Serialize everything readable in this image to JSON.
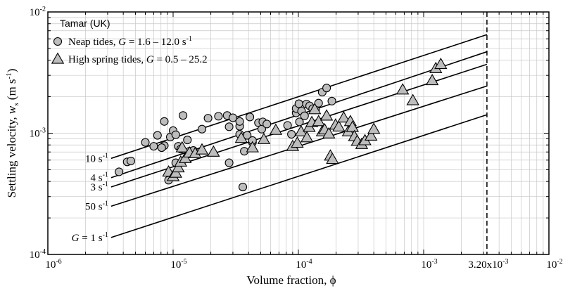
{
  "chart_data": {
    "type": "scatter",
    "x_scale": "log",
    "y_scale": "log",
    "xlim": [
      1e-06,
      0.01
    ],
    "ylim": [
      0.0001,
      0.01
    ],
    "grid": true,
    "legend_position": "top-left",
    "xlabel": "Volume fraction, ϕ",
    "ylabel_parts": [
      "Settling velocity, ",
      "w",
      "s",
      " (m s",
      "-1",
      ")"
    ],
    "x_ticks": [
      {
        "value": 1e-06,
        "base": "10",
        "exp": "-6"
      },
      {
        "value": 1e-05,
        "base": "10",
        "exp": "-5"
      },
      {
        "value": 0.0001,
        "base": "10",
        "exp": "-4"
      },
      {
        "value": 0.001,
        "base": "10",
        "exp": "-3"
      },
      {
        "value": 0.01,
        "base": "10",
        "exp": "-2"
      }
    ],
    "y_ticks": [
      {
        "value": 0.0001,
        "base": "10",
        "exp": "-4"
      },
      {
        "value": 0.001,
        "base": "10",
        "exp": "-3"
      },
      {
        "value": 0.01,
        "base": "10",
        "exp": "-2"
      }
    ],
    "vline": {
      "x": 0.0032,
      "label": "3.20x10",
      "label_exp": "-3"
    },
    "legend": {
      "title": "Tamar (UK)",
      "entries": [
        {
          "marker": "circle",
          "text": "Neap tides, ",
          "var": "G",
          "rest": " = 1.6 – 12.0 s",
          "sup": "-1"
        },
        {
          "marker": "triangle",
          "text": "High spring tides, ",
          "var": "G",
          "rest": " = 0.5 – 25.2",
          "sup": ""
        }
      ]
    },
    "curves": [
      {
        "label_prefix": "",
        "label": "10 s",
        "sup": "-1",
        "x_start": 3.2e-06,
        "y_start": 0.00062,
        "x_end": 0.0032,
        "y_end": 0.0065
      },
      {
        "label_prefix": "",
        "label": "4 s",
        "sup": "-1",
        "x_start": 3.2e-06,
        "y_start": 0.00043,
        "x_end": 0.0032,
        "y_end": 0.0047
      },
      {
        "label_prefix": "",
        "label": "3 s",
        "sup": "-1",
        "x_start": 3.2e-06,
        "y_start": 0.00036,
        "x_end": 0.0032,
        "y_end": 0.0037
      },
      {
        "label_prefix": "",
        "label": "50 s",
        "sup": "-1",
        "x_start": 3.2e-06,
        "y_start": 0.00025,
        "x_end": 0.0032,
        "y_end": 0.00245
      },
      {
        "label_prefix": "G",
        "label": " = 1 s",
        "sup": "-1",
        "x_start": 3.2e-06,
        "y_start": 0.000138,
        "x_end": 0.0032,
        "y_end": 0.00142
      }
    ],
    "series": [
      {
        "name": "Neap tides",
        "marker": "circle",
        "x": [
          3.7e-06,
          4.3e-06,
          4.6e-06,
          6e-06,
          7e-06,
          7.5e-06,
          8.5e-06,
          8.5e-06,
          9.5e-06,
          1e-05,
          1.05e-05,
          1.1e-05,
          1.15e-05,
          1.2e-05,
          1.3e-05,
          1.35e-05,
          1.45e-05,
          1.7e-05,
          1.9e-05,
          2.3e-05,
          2.7e-05,
          2.8e-05,
          3e-05,
          3.4e-05,
          3.4e-05,
          3.6e-05,
          3.7e-05,
          3.9e-05,
          4.1e-05,
          4.3e-05,
          4.3e-05,
          4.8e-05,
          5.1e-05,
          5.2e-05,
          5.6e-05,
          8.2e-05,
          8.8e-05,
          9.6e-05,
          9.6e-05,
          0.000101,
          0.000102,
          0.000106,
          0.000112,
          0.000116,
          0.000123,
          0.00013,
          0.000137,
          0.000145,
          0.000155,
          0.000168,
          0.000185,
          8.1e-06,
          9.2e-06,
          1.05e-05,
          2.8e-05,
          3.4e-05
        ],
        "y": [
          0.00048,
          0.00058,
          0.00059,
          0.00084,
          0.00078,
          0.00096,
          0.00079,
          0.00125,
          0.00093,
          0.00105,
          0.00097,
          0.00078,
          0.00074,
          0.0014,
          0.00088,
          0.00071,
          0.00072,
          0.00108,
          0.00133,
          0.00138,
          0.0014,
          0.00113,
          0.00134,
          0.00114,
          0.00125,
          0.00036,
          0.00071,
          0.00096,
          0.00136,
          0.00084,
          0.00087,
          0.00122,
          0.00108,
          0.00124,
          0.00119,
          0.00116,
          0.00098,
          0.00147,
          0.0016,
          0.00175,
          0.00124,
          0.00152,
          0.00139,
          0.00174,
          0.00168,
          0.00159,
          0.00156,
          0.00177,
          0.00218,
          0.00236,
          0.00184,
          0.00076,
          0.00041,
          0.00057,
          0.00057,
          0.00098
        ]
      },
      {
        "name": "High spring tides",
        "marker": "triangle",
        "x": [
          9.2e-06,
          1e-05,
          1.05e-05,
          1.1e-05,
          1.15e-05,
          1.18e-05,
          1.25e-05,
          1.35e-05,
          1.5e-05,
          1.7e-05,
          2.1e-05,
          3.5e-05,
          4.3e-05,
          5.3e-05,
          6.6e-05,
          9e-05,
          9.8e-05,
          0.000105,
          0.000117,
          0.000122,
          0.000128,
          0.000135,
          0.000145,
          0.000155,
          0.000162,
          0.000168,
          0.000175,
          0.00018,
          0.000187,
          0.000198,
          0.00021,
          0.00023,
          0.00025,
          0.00026,
          0.00027,
          0.00028,
          0.000295,
          0.00032,
          0.00034,
          0.00038,
          0.0004,
          0.00068,
          0.00082,
          0.00117,
          0.00125,
          0.00137
        ],
        "y": [
          0.00048,
          0.00044,
          0.00047,
          0.00052,
          0.00058,
          0.00076,
          0.00062,
          0.00069,
          0.00068,
          0.00073,
          0.0007,
          0.00091,
          0.00076,
          0.00089,
          0.00106,
          0.00078,
          0.00083,
          0.00103,
          0.00092,
          0.00112,
          0.00123,
          0.00157,
          0.00125,
          0.00103,
          0.00107,
          0.00139,
          0.00099,
          0.00065,
          0.00061,
          0.00117,
          0.00113,
          0.00134,
          0.00103,
          0.00125,
          0.00112,
          0.00094,
          0.00086,
          0.00081,
          0.00087,
          0.00095,
          0.00108,
          0.00228,
          0.00186,
          0.00272,
          0.00342,
          0.0037
        ]
      }
    ]
  }
}
